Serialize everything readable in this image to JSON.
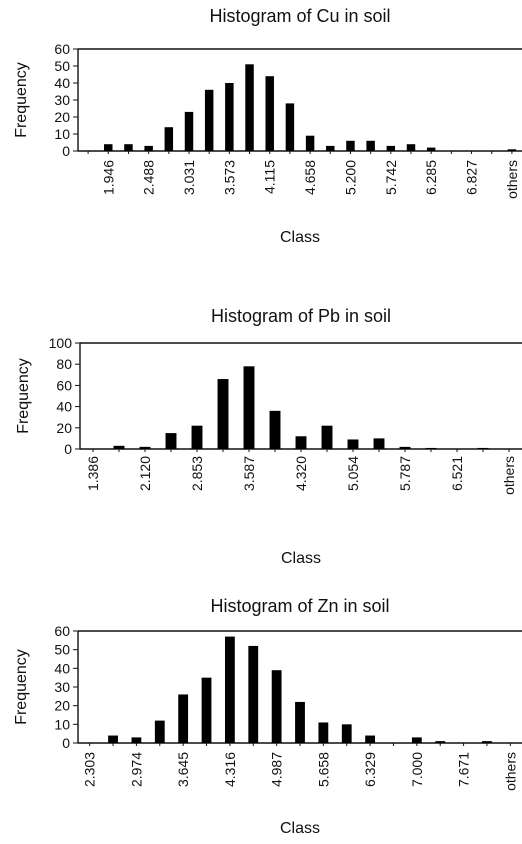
{
  "chart_data": [
    {
      "type": "bar",
      "title": "Histogram of Cu in soil",
      "xlabel": "Class",
      "ylabel": "Frequency",
      "ylim": [
        0,
        60
      ],
      "yticks": [
        "0",
        "10",
        "20",
        "30",
        "40",
        "50",
        "60"
      ],
      "categories": [
        "",
        "1.946",
        "",
        "2.488",
        "",
        "3.031",
        "",
        "3.573",
        "",
        "4.115",
        "",
        "4.658",
        "",
        "5.200",
        "",
        "5.742",
        "",
        "6.285",
        "",
        "6.827",
        "",
        "others"
      ],
      "values": [
        0,
        4,
        4,
        3,
        14,
        23,
        36,
        40,
        51,
        44,
        28,
        9,
        3,
        6,
        6,
        3,
        4,
        2,
        0,
        0,
        0,
        1
      ],
      "grid": false
    },
    {
      "type": "bar",
      "title": "Histogram of Pb in soil",
      "xlabel": "Class",
      "ylabel": "Frequency",
      "ylim": [
        0,
        100
      ],
      "yticks": [
        "0",
        "20",
        "40",
        "60",
        "80",
        "100"
      ],
      "categories": [
        "1.386",
        "",
        "2.120",
        "",
        "2.853",
        "",
        "3.587",
        "",
        "4.320",
        "",
        "5.054",
        "",
        "5.787",
        "",
        "6.521",
        "",
        "others"
      ],
      "values": [
        0,
        3,
        2,
        15,
        22,
        66,
        78,
        36,
        12,
        22,
        9,
        10,
        2,
        1,
        0,
        1,
        0
      ],
      "grid": false
    },
    {
      "type": "bar",
      "title": "Histogram  of Zn in soil",
      "xlabel": "Class",
      "ylabel": "Frequency",
      "ylim": [
        0,
        60
      ],
      "yticks": [
        "0",
        "10",
        "20",
        "30",
        "40",
        "50",
        "60"
      ],
      "categories": [
        "2.303",
        "",
        "2.974",
        "",
        "3.645",
        "",
        "4.316",
        "",
        "4.987",
        "",
        "5.658",
        "",
        "6.329",
        "",
        "7.000",
        "",
        "7.671",
        "",
        "others"
      ],
      "values": [
        0,
        4,
        3,
        12,
        26,
        35,
        57,
        52,
        39,
        22,
        11,
        10,
        4,
        0,
        3,
        1,
        0,
        1,
        0
      ],
      "grid": false
    }
  ]
}
